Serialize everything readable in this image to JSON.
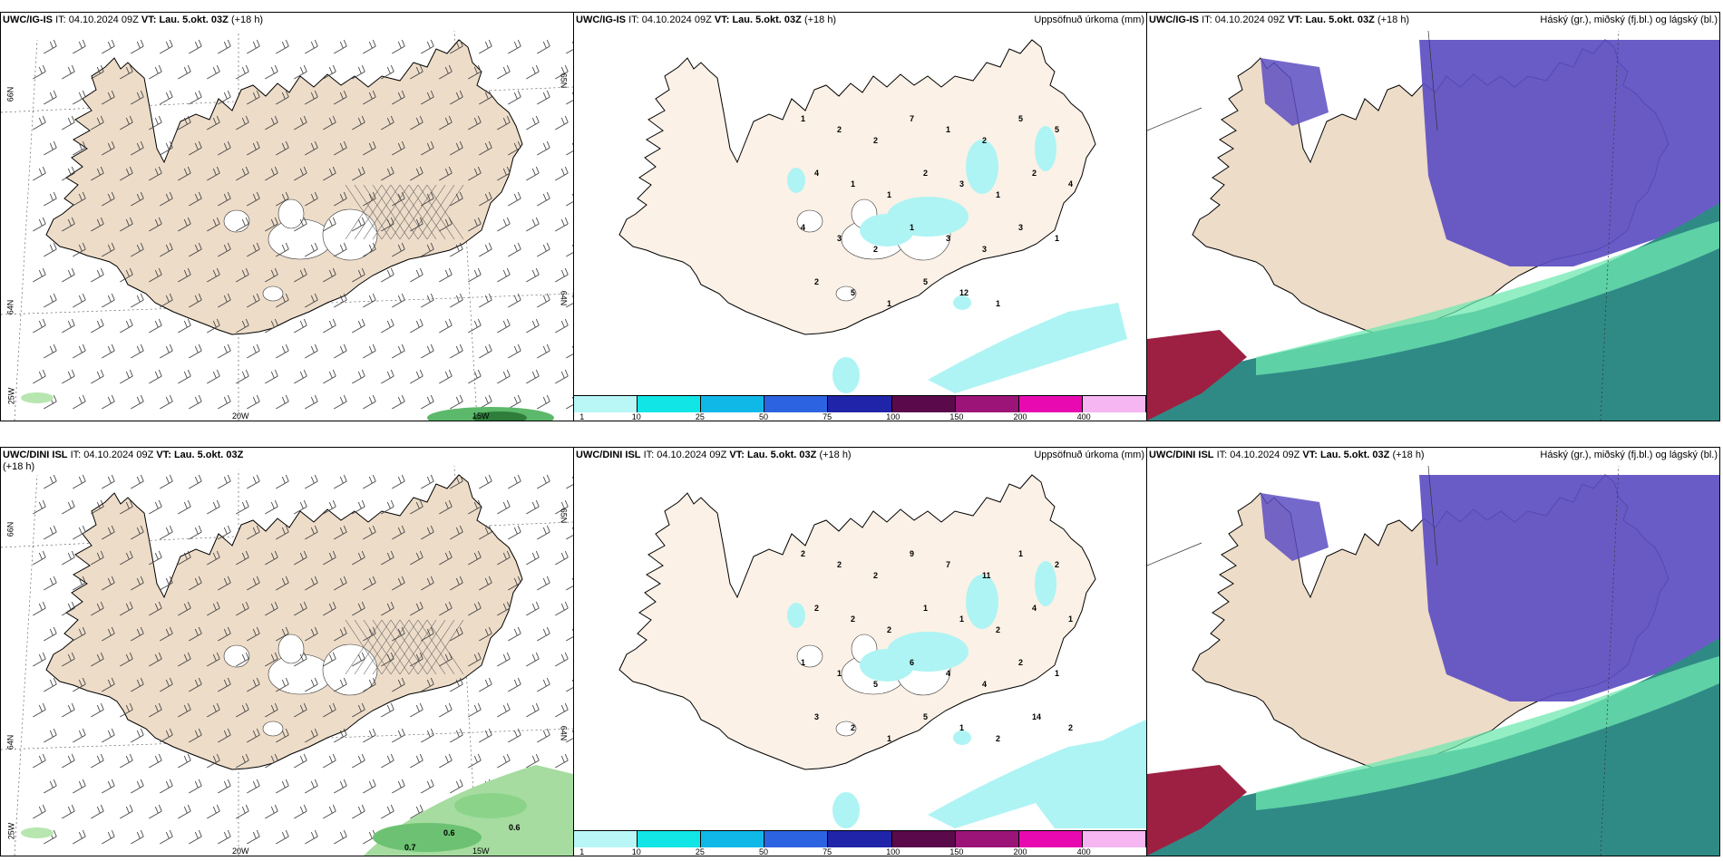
{
  "colors": {
    "land": "#eddcc8",
    "land_pale": "#fbf1e6",
    "cyan": "#aef4f4",
    "purple": "#5d4ec2",
    "teal": "#2f8a86",
    "green": "#6fe8b0",
    "maroon": "#9d2042"
  },
  "rows": [
    {
      "wind": {
        "model": "UWC/IG-IS",
        "it_label": "IT:",
        "it": "04.10.2024 09Z",
        "vt_label": "VT:",
        "vt": "Lau. 5.okt. 03Z",
        "lead": "(+18 h)",
        "lat_left_top": "66N",
        "lat_left_mid": "64N",
        "lat_right_top": "65N",
        "lat_right_mid": "64N",
        "lon_corner": "25W",
        "lon_a": "20W",
        "lon_b": "15W"
      },
      "precip": {
        "model": "UWC/IG-IS",
        "it_label": "IT:",
        "it": "04.10.2024 09Z",
        "vt_label": "VT:",
        "vt": "Lau. 5.okt. 03Z",
        "lead": "(+18 h)",
        "right": "Uppsöfnuð úrkoma (mm)",
        "values": [
          "1",
          "2",
          "2",
          "7",
          "1",
          "2",
          "5",
          "5",
          "4",
          "1",
          "1",
          "2",
          "3",
          "1",
          "2",
          "4",
          "4",
          "3",
          "2",
          "1",
          "3",
          "3",
          "3",
          "1",
          "2",
          "5",
          "1",
          "5",
          "12",
          "1"
        ]
      },
      "cloud": {
        "model": "UWC/IG-IS",
        "it_label": "IT:",
        "it": "04.10.2024 09Z",
        "vt_label": "VT:",
        "vt": "Lau. 5.okt. 03Z",
        "lead": "(+18 h)",
        "right": "Háský (gr.), miðský (fj.bl.) og lágský (bl.)"
      }
    },
    {
      "wind": {
        "model": "UWC/DINI ISL",
        "it_label": "IT:",
        "it": "04.10.2024 09Z",
        "vt_label": "VT:",
        "vt": "Lau. 5.okt. 03Z",
        "lead": "(+18 h)",
        "lat_left_top": "66N",
        "lat_left_mid": "64N",
        "lat_right_top": "65N",
        "lat_right_mid": "64N",
        "lon_corner": "25W",
        "lon_a": "20W",
        "lon_b": "15W",
        "values": [
          "0.6",
          "0.6",
          "0.7"
        ]
      },
      "precip": {
        "model": "UWC/DINI ISL",
        "it_label": "IT:",
        "it": "04.10.2024 09Z",
        "vt_label": "VT:",
        "vt": "Lau. 5.okt. 03Z",
        "lead": "(+18 h)",
        "right": "Uppsöfnuð úrkoma (mm)",
        "values": [
          "2",
          "2",
          "2",
          "9",
          "7",
          "11",
          "1",
          "2",
          "2",
          "2",
          "2",
          "1",
          "1",
          "2",
          "4",
          "1",
          "1",
          "1",
          "5",
          "6",
          "4",
          "4",
          "2",
          "1",
          "3",
          "2",
          "1",
          "5",
          "1",
          "2",
          "14",
          "2"
        ]
      },
      "cloud": {
        "model": "UWC/DINI ISL",
        "it_label": "IT:",
        "it": "04.10.2024 09Z",
        "vt_label": "VT:",
        "vt": "Lau. 5.okt. 03Z",
        "lead": "(+18 h)",
        "right": "Háský (gr.), miðský (fj.bl.) og lágský (bl.)"
      }
    }
  ],
  "legend": {
    "colors": [
      "#b9f7f7",
      "#12e5e5",
      "#10b8e8",
      "#2c63e0",
      "#2024a8",
      "#5a0a4a",
      "#9c1478",
      "#e80ab0",
      "#f5b6f2"
    ],
    "ticks": [
      "1",
      "10",
      "25",
      "50",
      "75",
      "100",
      "150",
      "200",
      "400"
    ]
  }
}
